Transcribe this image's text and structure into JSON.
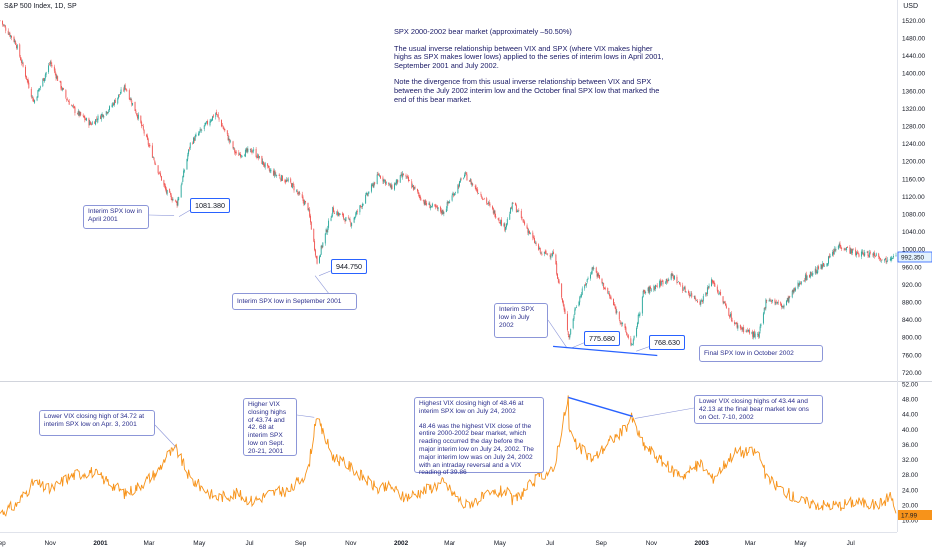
{
  "header": {
    "symbol_title": "S&P 500 Index, 1D, SP",
    "currency": "USD"
  },
  "notes": {
    "title": "SPX 2000-2002 bear market (approximately –50.50%)",
    "para1": "The usual inverse relationship between VIX and SPX (where VIX makes higher highs as SPX makes lower lows) applied to the series of interim lows in April 2001, September 2001 and July 2002.",
    "para2": "Note the divergence from this usual inverse relationship between VIX and SPX between the July 2002 interim low and the October final SPX low that marked the end of this bear market."
  },
  "spx_callouts": {
    "apr2001_label": "Interim SPX low in April 2001",
    "apr2001_price": "1081.380",
    "sep2001_label": "Interim SPX low in September 2001",
    "sep2001_price": "944.750",
    "jul2002_label": "Interim SPX low in July 2002",
    "jul2002_price": "775.680",
    "oct2002_label": "Final SPX low in October 2002",
    "oct2002_price": "768.630",
    "last_price": "992.350"
  },
  "vix_callouts": {
    "apr2001": "Lower VIX closing high of 34.72 at interim SPX low on Apr. 3, 2001",
    "sep2001": "Higher VIX closing highs of 43.74 and 42. 68 at interim SPX low on Sept. 20-21, 2001",
    "jul2002_a": "Highest VIX closing high of 48.46 at interim SPX low on July 24, 2002",
    "jul2002_b": "48.46 was the highest VIX close of the entire 2000-2002 bear market, which reading occurred the day before the major interim low on July 24, 2002. The major interim low was on July 24, 2002 with an intraday reversal and a VIX reading of 39.86",
    "oct2002": "Lower VIX closing highs of 43.44 and 42.13  at the final bear market low ons on Oct. 7-10, 2002",
    "last_value": "17.99"
  },
  "colors": {
    "up": "#26a69a",
    "down": "#ef5350",
    "vix": "#f7931a",
    "trend": "#2962ff",
    "callout_border": "#8c96d8"
  },
  "chart_data": [
    {
      "type": "candlestick",
      "title": "S&P 500 Index, 1D, SP",
      "ylabel": "USD",
      "ylim": [
        710,
        1535
      ],
      "yticks": [
        720,
        760,
        800,
        840,
        880,
        920,
        960,
        1000,
        1040,
        1080,
        1120,
        1160,
        1200,
        1240,
        1280,
        1320,
        1360,
        1400,
        1440,
        1480,
        1520
      ],
      "xlim": [
        "2000-09-01",
        "2003-08-25"
      ],
      "xticks": [
        {
          "date": "2000-09-01",
          "label": "Sep",
          "major": false
        },
        {
          "date": "2000-11-01",
          "label": "Nov",
          "major": false
        },
        {
          "date": "2001-01-01",
          "label": "2001",
          "major": true
        },
        {
          "date": "2001-03-01",
          "label": "Mar",
          "major": false
        },
        {
          "date": "2001-05-01",
          "label": "May",
          "major": false
        },
        {
          "date": "2001-07-01",
          "label": "Jul",
          "major": false
        },
        {
          "date": "2001-09-01",
          "label": "Sep",
          "major": false
        },
        {
          "date": "2001-11-01",
          "label": "Nov",
          "major": false
        },
        {
          "date": "2002-01-01",
          "label": "2002",
          "major": true
        },
        {
          "date": "2002-03-01",
          "label": "Mar",
          "major": false
        },
        {
          "date": "2002-05-01",
          "label": "May",
          "major": false
        },
        {
          "date": "2002-07-01",
          "label": "Jul",
          "major": false
        },
        {
          "date": "2002-09-01",
          "label": "Sep",
          "major": false
        },
        {
          "date": "2002-11-01",
          "label": "Nov",
          "major": false
        },
        {
          "date": "2003-01-01",
          "label": "2003",
          "major": true
        },
        {
          "date": "2003-03-01",
          "label": "Mar",
          "major": false
        },
        {
          "date": "2003-05-01",
          "label": "May",
          "major": false
        },
        {
          "date": "2003-07-01",
          "label": "Jul",
          "major": false
        }
      ],
      "close_path": [
        [
          "2000-09-01",
          1520
        ],
        [
          "2000-09-20",
          1470
        ],
        [
          "2000-10-12",
          1335
        ],
        [
          "2000-11-01",
          1425
        ],
        [
          "2000-11-20",
          1345
        ],
        [
          "2000-12-01",
          1315
        ],
        [
          "2000-12-20",
          1285
        ],
        [
          "2001-01-12",
          1320
        ],
        [
          "2001-01-31",
          1370
        ],
        [
          "2001-02-16",
          1300
        ],
        [
          "2001-03-12",
          1180
        ],
        [
          "2001-03-22",
          1130
        ],
        [
          "2001-04-04",
          1105
        ],
        [
          "2001-04-20",
          1240
        ],
        [
          "2001-05-21",
          1310
        ],
        [
          "2001-06-15",
          1215
        ],
        [
          "2001-07-05",
          1225
        ],
        [
          "2001-07-24",
          1180
        ],
        [
          "2001-08-20",
          1150
        ],
        [
          "2001-09-10",
          1095
        ],
        [
          "2001-09-21",
          970
        ],
        [
          "2001-10-10",
          1090
        ],
        [
          "2001-11-01",
          1060
        ],
        [
          "2001-12-05",
          1170
        ],
        [
          "2001-12-20",
          1140
        ],
        [
          "2002-01-04",
          1170
        ],
        [
          "2002-01-30",
          1105
        ],
        [
          "2002-02-21",
          1085
        ],
        [
          "2002-03-19",
          1170
        ],
        [
          "2002-04-10",
          1120
        ],
        [
          "2002-05-07",
          1050
        ],
        [
          "2002-05-17",
          1105
        ],
        [
          "2002-06-20",
          990
        ],
        [
          "2002-07-05",
          990
        ],
        [
          "2002-07-12",
          920
        ],
        [
          "2002-07-24",
          800
        ],
        [
          "2002-08-01",
          870
        ],
        [
          "2002-08-22",
          960
        ],
        [
          "2002-09-12",
          890
        ],
        [
          "2002-09-30",
          815
        ],
        [
          "2002-10-09",
          780
        ],
        [
          "2002-10-22",
          900
        ],
        [
          "2002-11-27",
          940
        ],
        [
          "2002-12-10",
          910
        ],
        [
          "2002-12-31",
          880
        ],
        [
          "2003-01-14",
          930
        ],
        [
          "2003-02-10",
          830
        ],
        [
          "2003-03-11",
          800
        ],
        [
          "2003-03-21",
          890
        ],
        [
          "2003-04-10",
          870
        ],
        [
          "2003-05-02",
          930
        ],
        [
          "2003-05-30",
          965
        ],
        [
          "2003-06-17",
          1010
        ],
        [
          "2003-07-08",
          990
        ],
        [
          "2003-07-31",
          990
        ],
        [
          "2003-08-11",
          975
        ],
        [
          "2003-08-25",
          992.35
        ]
      ],
      "annotations": [
        {
          "date": "2001-04-04",
          "price": 1081.38,
          "label": "Interim SPX low in April 2001"
        },
        {
          "date": "2001-09-21",
          "price": 944.75,
          "label": "Interim SPX low in September 2001"
        },
        {
          "date": "2002-07-24",
          "price": 775.68,
          "label": "Interim SPX low in July 2002"
        },
        {
          "date": "2002-10-10",
          "price": 768.63,
          "label": "Final SPX low in October 2002"
        }
      ],
      "trendline": [
        [
          "2002-07-24",
          775
        ],
        [
          "2002-10-10",
          768
        ]
      ]
    },
    {
      "type": "line",
      "series_color": "#f7931a",
      "ylim": [
        14,
        52
      ],
      "yticks": [
        16,
        20,
        24,
        28,
        32,
        36,
        40,
        44,
        48,
        52
      ],
      "points": [
        [
          "2000-09-01",
          18
        ],
        [
          "2000-09-20",
          20
        ],
        [
          "2000-10-12",
          26
        ],
        [
          "2000-11-01",
          24
        ],
        [
          "2000-11-20",
          27
        ],
        [
          "2000-12-01",
          28
        ],
        [
          "2000-12-20",
          29
        ],
        [
          "2001-01-12",
          26
        ],
        [
          "2001-01-31",
          23
        ],
        [
          "2001-02-16",
          25
        ],
        [
          "2001-03-12",
          29
        ],
        [
          "2001-03-22",
          33
        ],
        [
          "2001-04-03",
          34.72
        ],
        [
          "2001-04-20",
          27
        ],
        [
          "2001-05-21",
          22
        ],
        [
          "2001-06-15",
          23
        ],
        [
          "2001-07-05",
          21
        ],
        [
          "2001-07-24",
          23
        ],
        [
          "2001-08-20",
          24
        ],
        [
          "2001-09-10",
          29
        ],
        [
          "2001-09-20",
          43.74
        ],
        [
          "2001-09-21",
          42.68
        ],
        [
          "2001-10-10",
          33
        ],
        [
          "2001-11-01",
          30
        ],
        [
          "2001-12-05",
          24
        ],
        [
          "2001-12-20",
          25
        ],
        [
          "2002-01-04",
          22
        ],
        [
          "2002-01-30",
          24
        ],
        [
          "2002-02-21",
          26
        ],
        [
          "2002-03-19",
          20
        ],
        [
          "2002-04-10",
          22
        ],
        [
          "2002-05-07",
          24
        ],
        [
          "2002-05-17",
          21
        ],
        [
          "2002-06-20",
          28
        ],
        [
          "2002-07-05",
          29
        ],
        [
          "2002-07-12",
          37
        ],
        [
          "2002-07-23",
          48.46
        ],
        [
          "2002-07-24",
          39.86
        ],
        [
          "2002-08-01",
          36
        ],
        [
          "2002-08-22",
          32
        ],
        [
          "2002-09-12",
          37
        ],
        [
          "2002-09-30",
          40
        ],
        [
          "2002-10-07",
          43.44
        ],
        [
          "2002-10-10",
          42.13
        ],
        [
          "2002-10-22",
          36
        ],
        [
          "2002-11-27",
          29
        ],
        [
          "2002-12-10",
          28
        ],
        [
          "2002-12-31",
          31
        ],
        [
          "2003-01-14",
          27
        ],
        [
          "2003-02-10",
          34
        ],
        [
          "2003-03-11",
          34
        ],
        [
          "2003-03-21",
          27
        ],
        [
          "2003-04-10",
          24
        ],
        [
          "2003-05-02",
          21
        ],
        [
          "2003-05-30",
          20
        ],
        [
          "2003-06-17",
          20
        ],
        [
          "2003-07-08",
          21
        ],
        [
          "2003-07-31",
          20
        ],
        [
          "2003-08-11",
          21
        ],
        [
          "2003-08-18",
          23
        ],
        [
          "2003-08-25",
          17.99
        ]
      ],
      "trendline": [
        [
          "2002-07-23",
          48.46
        ],
        [
          "2002-10-07",
          43.44
        ]
      ]
    }
  ]
}
